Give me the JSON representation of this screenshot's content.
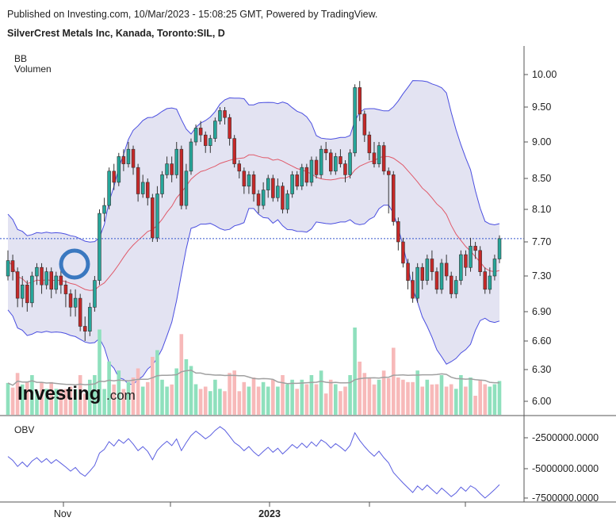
{
  "header": {
    "published": "Published on Investing.com, 10/Mar/2023 - 15:08:25 GMT, Powered by TradingView.",
    "symbol_title": "SilverCrest Metals Inc, Kanada, Toronto:SIL, D"
  },
  "legend": {
    "bb": "BB",
    "volume": "Volumen",
    "obv": "OBV"
  },
  "watermark": {
    "part1": "Investing",
    "part2": ".com"
  },
  "colors": {
    "up": "#26a69a",
    "down": "#c62828",
    "up_volume": "#8fe0bd",
    "down_volume": "#f7b9b9",
    "bb_band": "#4a4ee0",
    "bb_fill": "#e3e3f2",
    "bb_mid": "#e05a6a",
    "vol_ma": "#a0a0a0",
    "obv_line": "#5a5ee0",
    "price_line": "#3355cc",
    "highlight_circle": "#3a78c0"
  },
  "chart_data": [
    {
      "type": "candlestick",
      "name": "price",
      "y_axis_ticks": [
        "6.00",
        "6.30",
        "6.60",
        "6.90",
        "7.30",
        "7.70",
        "8.10",
        "8.50",
        "9.00",
        "9.50",
        "10.00"
      ],
      "x_axis_ticks": [
        "Nov",
        "2023"
      ],
      "last_price": 7.74,
      "candles": [
        [
          7.3,
          7.48,
          7.6,
          7.25
        ],
        [
          7.48,
          7.35,
          7.55,
          7.25
        ],
        [
          7.35,
          7.05,
          7.4,
          6.95
        ],
        [
          7.05,
          7.2,
          7.3,
          6.95
        ],
        [
          7.2,
          7.0,
          7.25,
          6.9
        ],
        [
          7.0,
          7.3,
          7.35,
          6.95
        ],
        [
          7.3,
          7.4,
          7.45,
          7.2
        ],
        [
          7.4,
          7.2,
          7.45,
          7.1
        ],
        [
          7.2,
          7.35,
          7.4,
          7.15
        ],
        [
          7.35,
          7.15,
          7.4,
          7.05
        ],
        [
          7.15,
          7.3,
          7.35,
          7.1
        ],
        [
          7.3,
          7.2,
          7.4,
          7.1
        ],
        [
          7.2,
          7.1,
          7.25,
          6.95
        ],
        [
          7.1,
          6.95,
          7.15,
          6.85
        ],
        [
          6.95,
          7.05,
          7.15,
          6.85
        ],
        [
          7.05,
          6.75,
          7.1,
          6.7
        ],
        [
          6.75,
          6.7,
          6.85,
          6.6
        ],
        [
          6.7,
          6.95,
          7.0,
          6.65
        ],
        [
          6.95,
          7.25,
          7.3,
          6.9
        ],
        [
          7.25,
          8.05,
          8.1,
          7.2
        ],
        [
          8.05,
          8.15,
          8.25,
          7.95
        ],
        [
          8.15,
          8.6,
          8.65,
          8.1
        ],
        [
          8.6,
          8.45,
          8.7,
          8.35
        ],
        [
          8.45,
          8.8,
          8.85,
          8.4
        ],
        [
          8.8,
          8.7,
          8.9,
          8.6
        ],
        [
          8.7,
          8.9,
          9.0,
          8.65
        ],
        [
          8.9,
          8.65,
          8.95,
          8.55
        ],
        [
          8.65,
          8.3,
          8.7,
          8.2
        ],
        [
          8.3,
          8.45,
          8.55,
          8.25
        ],
        [
          8.45,
          8.25,
          8.5,
          8.15
        ],
        [
          8.25,
          7.75,
          8.3,
          7.7
        ],
        [
          7.75,
          8.3,
          8.4,
          7.7
        ],
        [
          8.3,
          8.55,
          8.6,
          8.25
        ],
        [
          8.55,
          8.7,
          8.8,
          8.5
        ],
        [
          8.7,
          8.55,
          8.8,
          8.45
        ],
        [
          8.55,
          8.9,
          9.0,
          8.5
        ],
        [
          8.9,
          8.15,
          8.95,
          8.1
        ],
        [
          8.15,
          8.6,
          8.7,
          8.1
        ],
        [
          8.6,
          9.0,
          9.05,
          8.55
        ],
        [
          9.0,
          9.2,
          9.25,
          8.95
        ],
        [
          9.2,
          9.1,
          9.3,
          9.0
        ],
        [
          9.1,
          8.95,
          9.15,
          8.85
        ],
        [
          8.95,
          9.05,
          9.1,
          8.85
        ],
        [
          9.05,
          9.3,
          9.35,
          9.0
        ],
        [
          9.3,
          9.45,
          9.5,
          9.25
        ],
        [
          9.45,
          9.35,
          9.5,
          9.25
        ],
        [
          9.35,
          9.05,
          9.4,
          8.95
        ],
        [
          9.05,
          8.7,
          9.1,
          8.65
        ],
        [
          8.7,
          8.6,
          8.75,
          8.5
        ],
        [
          8.6,
          8.4,
          8.65,
          8.3
        ],
        [
          8.4,
          8.55,
          8.6,
          8.3
        ],
        [
          8.55,
          8.3,
          8.6,
          8.2
        ],
        [
          8.3,
          8.15,
          8.35,
          8.05
        ],
        [
          8.15,
          8.35,
          8.45,
          8.1
        ],
        [
          8.35,
          8.5,
          8.55,
          8.25
        ],
        [
          8.5,
          8.25,
          8.55,
          8.2
        ],
        [
          8.25,
          8.4,
          8.5,
          8.2
        ],
        [
          8.4,
          8.1,
          8.45,
          8.05
        ],
        [
          8.1,
          8.3,
          8.35,
          8.05
        ],
        [
          8.3,
          8.55,
          8.6,
          8.25
        ],
        [
          8.55,
          8.4,
          8.6,
          8.35
        ],
        [
          8.4,
          8.65,
          8.7,
          8.35
        ],
        [
          8.65,
          8.45,
          8.7,
          8.4
        ],
        [
          8.45,
          8.75,
          8.8,
          8.4
        ],
        [
          8.75,
          8.55,
          8.8,
          8.5
        ],
        [
          8.55,
          8.9,
          8.95,
          8.5
        ],
        [
          8.9,
          8.85,
          9.0,
          8.75
        ],
        [
          8.85,
          8.6,
          8.9,
          8.55
        ],
        [
          8.6,
          8.8,
          8.85,
          8.55
        ],
        [
          8.8,
          8.7,
          8.9,
          8.65
        ],
        [
          8.7,
          8.55,
          8.75,
          8.45
        ],
        [
          8.55,
          8.85,
          8.9,
          8.5
        ],
        [
          8.85,
          9.8,
          9.85,
          8.8
        ],
        [
          9.8,
          9.4,
          9.9,
          9.3
        ],
        [
          9.4,
          9.1,
          9.45,
          9.0
        ],
        [
          9.1,
          8.85,
          9.15,
          8.75
        ],
        [
          8.85,
          8.7,
          9.0,
          8.65
        ],
        [
          8.7,
          8.95,
          9.0,
          8.65
        ],
        [
          8.95,
          8.6,
          9.0,
          8.55
        ],
        [
          8.6,
          8.55,
          8.65,
          8.05
        ],
        [
          8.55,
          7.95,
          8.6,
          7.9
        ],
        [
          7.95,
          7.7,
          8.0,
          7.6
        ],
        [
          7.7,
          7.45,
          7.75,
          7.4
        ],
        [
          7.45,
          7.25,
          7.5,
          7.15
        ],
        [
          7.25,
          7.05,
          7.35,
          7.0
        ],
        [
          7.05,
          7.4,
          7.45,
          7.0
        ],
        [
          7.4,
          7.25,
          7.45,
          7.15
        ],
        [
          7.25,
          7.5,
          7.55,
          7.2
        ],
        [
          7.5,
          7.35,
          7.6,
          7.25
        ],
        [
          7.35,
          7.15,
          7.4,
          7.1
        ],
        [
          7.15,
          7.45,
          7.5,
          7.1
        ],
        [
          7.45,
          7.3,
          7.55,
          7.25
        ],
        [
          7.3,
          7.1,
          7.35,
          7.05
        ],
        [
          7.1,
          7.25,
          7.3,
          7.05
        ],
        [
          7.25,
          7.55,
          7.6,
          7.2
        ],
        [
          7.55,
          7.4,
          7.6,
          7.3
        ],
        [
          7.4,
          7.65,
          7.75,
          7.35
        ],
        [
          7.65,
          7.6,
          7.7,
          7.5
        ],
        [
          7.6,
          7.35,
          7.65,
          7.3
        ],
        [
          7.35,
          7.15,
          7.4,
          7.1
        ],
        [
          7.15,
          7.3,
          7.4,
          7.1
        ],
        [
          7.3,
          7.5,
          7.55,
          7.25
        ],
        [
          7.5,
          7.74,
          7.78,
          7.45
        ]
      ]
    },
    {
      "type": "line",
      "name": "obv",
      "y_axis_ticks": [
        "-2500000.0000",
        "-5000000.0000",
        "-7500000.0000"
      ]
    }
  ]
}
